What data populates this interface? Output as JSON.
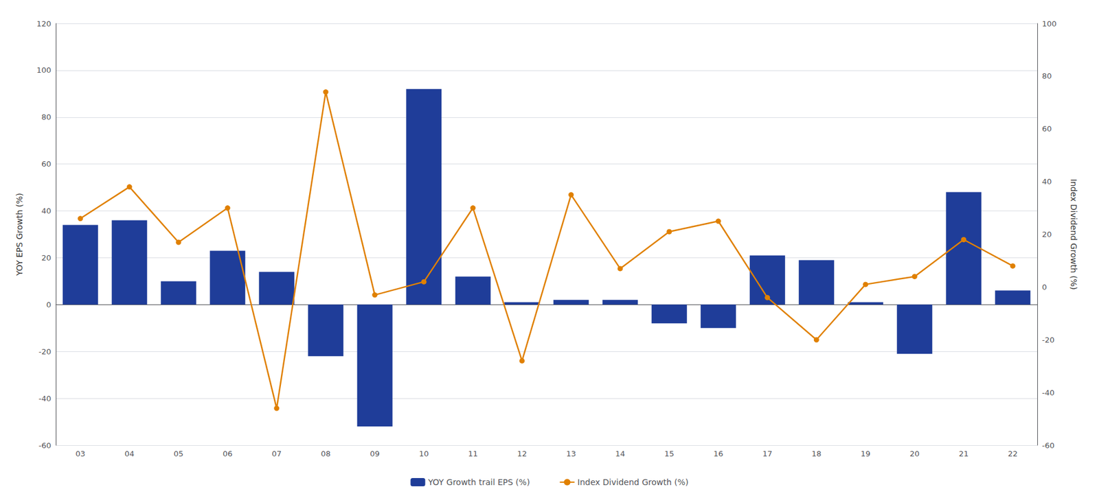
{
  "chart_data": {
    "type": "bar",
    "categories": [
      "03",
      "04",
      "05",
      "06",
      "07",
      "08",
      "09",
      "10",
      "11",
      "12",
      "13",
      "14",
      "15",
      "16",
      "17",
      "18",
      "19",
      "20",
      "21",
      "22"
    ],
    "series": [
      {
        "name": "YOY Growth trail EPS (%)",
        "type": "bar",
        "color": "#1f3d99",
        "values": [
          34,
          36,
          10,
          23,
          14,
          -22,
          -52,
          92,
          12,
          1,
          2,
          2,
          -8,
          -10,
          21,
          19,
          1,
          -21,
          48,
          6
        ]
      },
      {
        "name": "Index Dividend Growth (%)",
        "type": "line",
        "axis": "y2",
        "color": "#e08000",
        "marker": "circle",
        "values": [
          26,
          38,
          17,
          30,
          -46,
          74,
          -3,
          2,
          30,
          -28,
          35,
          7,
          21,
          25,
          -4,
          -20,
          1,
          4,
          18,
          8
        ]
      }
    ],
    "ylabel": "YOY EPS Growth (%)",
    "y2label": "Index Dividend Growth (%)",
    "ylim": [
      -60,
      120
    ],
    "yticks": [
      -60,
      -40,
      -20,
      0,
      20,
      40,
      60,
      80,
      100,
      120
    ],
    "y2lim": [
      -60,
      100
    ],
    "y2ticks": [
      -60,
      -40,
      -20,
      0,
      20,
      40,
      60,
      80,
      100
    ],
    "grid": true,
    "legend": "bottom"
  }
}
